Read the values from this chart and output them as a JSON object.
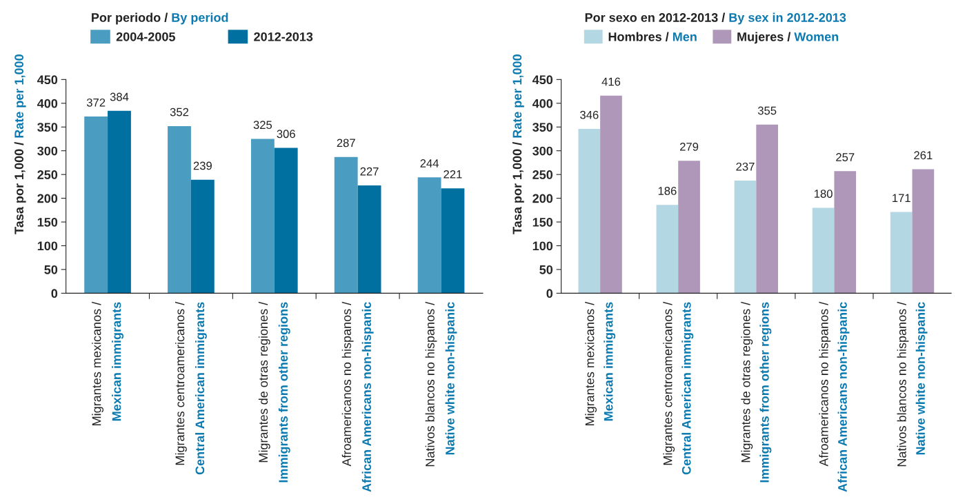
{
  "chart_data": [
    {
      "type": "bar",
      "legend_title": "Por periodo / By period",
      "ylabel": "Tasa por 1,000 / Rate per 1,000",
      "categories": [
        "Migrantes mexicanos /\nMexican immigrants",
        "Migrantes centroamericanos /\nCentral American immigrants",
        "Migrantes de otras regiones /\nImmigrants from other regions",
        "Afroamericanos no hispanos /\nAfrican Americans non-hispanic",
        "Nativos blancos no hispanos /\nNative white non-hispanic"
      ],
      "series": [
        {
          "name": "2004-2005",
          "color": "#4a9dc0",
          "values": [
            372,
            352,
            325,
            287,
            244
          ]
        },
        {
          "name": "2012-2013",
          "color": "#0070a0",
          "values": [
            384,
            239,
            306,
            227,
            221
          ]
        }
      ],
      "ylim": [
        0,
        450
      ],
      "yticks": [
        0,
        50,
        100,
        150,
        200,
        250,
        300,
        350,
        400,
        450
      ],
      "data_labels": true,
      "legend": "top left",
      "grid": false
    },
    {
      "type": "bar",
      "legend_title": "Por sexo en 2012-2013 / By sex in 2012-2013",
      "ylabel": "Tasa por 1,000 / Rate per 1,000",
      "categories": [
        "Migrantes mexicanos /\nMexican immigrants",
        "Migrantes centroamericanos /\nCentral American immigrants",
        "Migrantes de otras regiones /\nImmigrants from other regions",
        "Afroamericanos no hispanos /\nAfrican Americans non-hispanic",
        "Nativos blancos no hispanos /\nNative white non-hispanic"
      ],
      "series": [
        {
          "name": "Hombres / Men",
          "color": "#b3d7e3",
          "values": [
            346,
            186,
            237,
            180,
            171
          ]
        },
        {
          "name": "Mujeres / Women",
          "color": "#ae97b9",
          "values": [
            416,
            279,
            355,
            257,
            261
          ]
        }
      ],
      "ylim": [
        0,
        450
      ],
      "yticks": [
        0,
        50,
        100,
        150,
        200,
        250,
        300,
        350,
        400,
        450
      ],
      "data_labels": true,
      "legend": "top left",
      "grid": false
    }
  ]
}
